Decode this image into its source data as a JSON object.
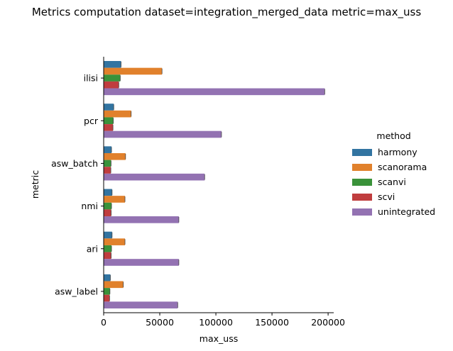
{
  "chart_data": {
    "type": "bar",
    "orientation": "horizontal",
    "title": "Metrics computation dataset=integration_merged_data metric=max_uss",
    "xlabel": "max_uss",
    "ylabel": "metric",
    "xlim": [
      0,
      205000
    ],
    "xticks": [
      0,
      50000,
      100000,
      150000,
      200000
    ],
    "xtick_labels": [
      "0",
      "50000",
      "100000",
      "150000",
      "200000"
    ],
    "categories": [
      "ilisi",
      "pcr",
      "asw_batch",
      "nmi",
      "ari",
      "asw_label"
    ],
    "legend_title": "method",
    "legend_position": "right",
    "grid": false,
    "series": [
      {
        "name": "harmony",
        "color": "#3274a1",
        "values": [
          15500,
          9000,
          7000,
          7500,
          7500,
          6000
        ]
      },
      {
        "name": "scanorama",
        "color": "#e1812c",
        "values": [
          52000,
          24500,
          19500,
          19000,
          19000,
          17500
        ]
      },
      {
        "name": "scanvi",
        "color": "#3a923a",
        "values": [
          14800,
          8600,
          6600,
          7000,
          7000,
          5600
        ]
      },
      {
        "name": "scvi",
        "color": "#c03d3e",
        "values": [
          13500,
          8300,
          6400,
          6700,
          6700,
          5300
        ]
      },
      {
        "name": "unintegrated",
        "color": "#9372b2",
        "values": [
          197000,
          105000,
          90000,
          67000,
          67000,
          66000
        ]
      }
    ]
  }
}
